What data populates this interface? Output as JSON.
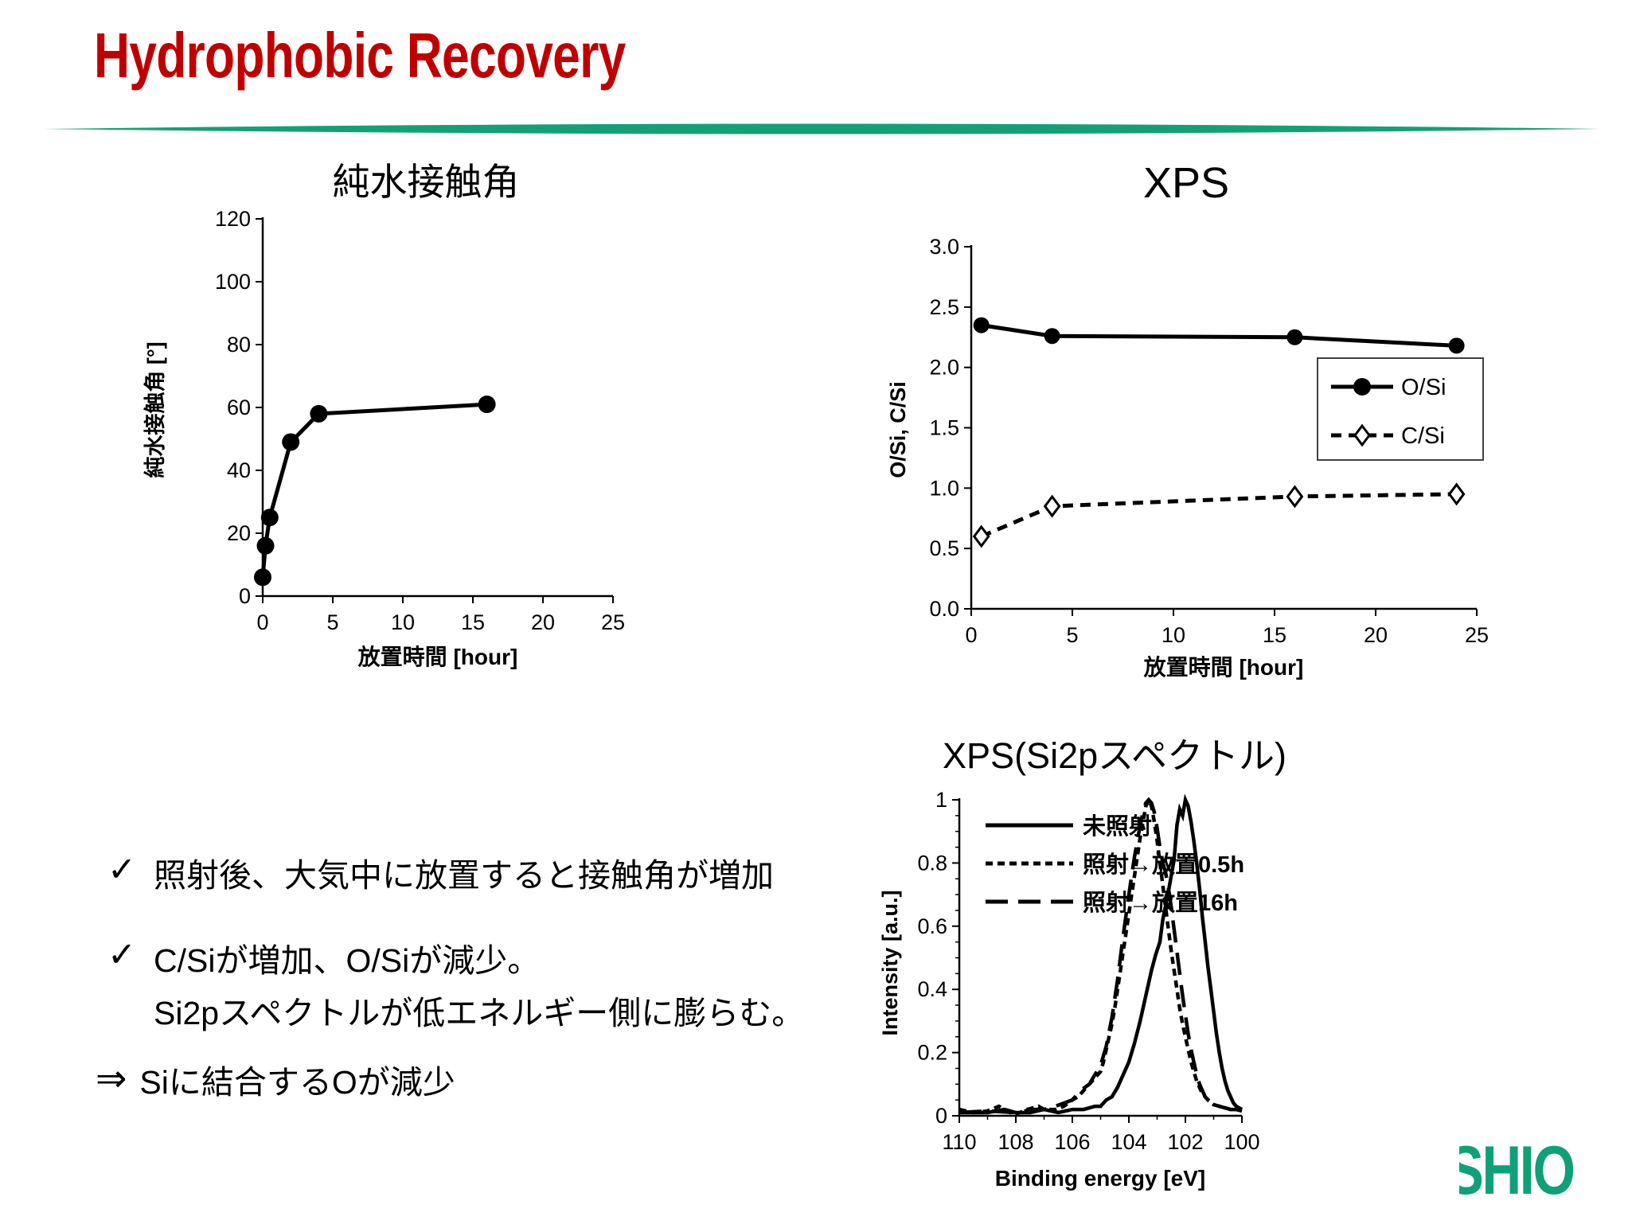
{
  "slide": {
    "title": "Hydrophobic Recovery",
    "title_color": "#C00000",
    "divider_color": "#14A076",
    "logo_text": "SHIO",
    "logo_color": "#0FA077"
  },
  "bullets": {
    "check_glyph": "✓",
    "arrow_glyph": "⇒",
    "item1": "照射後、大気中に放置すると接触角が増加",
    "item2_line1": "C/Siが増加、O/Siが減少。",
    "item2_line2": "Si2pスペクトルが低エネルギー側に膨らむ。",
    "conclusion": "Siに結合するOが減少"
  },
  "chart_data": [
    {
      "id": "contact-angle",
      "type": "line",
      "title": "純水接触角",
      "xlabel": "放置時間 [hour]",
      "ylabel": "純水接触角 [°]",
      "xlim": [
        0,
        25
      ],
      "ylim": [
        0,
        120
      ],
      "xticks": [
        0,
        5,
        10,
        15,
        20,
        25
      ],
      "xtick_labels": [
        "0",
        "5",
        "10",
        "15",
        "20",
        "25"
      ],
      "yticks": [
        0,
        20,
        40,
        60,
        80,
        100,
        120
      ],
      "ytick_labels": [
        "0",
        "20",
        "40",
        "60",
        "80",
        "100",
        "120"
      ],
      "grid": false,
      "legend": "none",
      "series": [
        {
          "name": "純水接触角",
          "line": "solid",
          "marker": "circle",
          "points": [
            [
              0,
              6
            ],
            [
              0.2,
              16
            ],
            [
              0.5,
              25
            ],
            [
              2,
              49
            ],
            [
              4,
              58
            ],
            [
              16,
              61
            ]
          ]
        }
      ]
    },
    {
      "id": "xps-ratio",
      "type": "line",
      "title": "XPS",
      "xlabel": "放置時間 [hour]",
      "ylabel": "O/Si,  C/Si",
      "xlim": [
        0,
        25
      ],
      "ylim": [
        0,
        3
      ],
      "xticks": [
        0,
        5,
        10,
        15,
        20,
        25
      ],
      "xtick_labels": [
        "0",
        "5",
        "10",
        "15",
        "20",
        "25"
      ],
      "yticks": [
        0,
        0.5,
        1,
        1.5,
        2,
        2.5,
        3
      ],
      "ytick_labels": [
        "0.0",
        "0.5",
        "1.0",
        "1.5",
        "2.0",
        "2.5",
        "3.0"
      ],
      "grid": false,
      "legend": "boxed-right",
      "series": [
        {
          "name": "O/Si",
          "line": "solid",
          "marker": "circle",
          "points": [
            [
              0.5,
              2.35
            ],
            [
              4,
              2.26
            ],
            [
              16,
              2.25
            ],
            [
              24,
              2.18
            ]
          ]
        },
        {
          "name": "C/Si",
          "line": "dashed",
          "marker": "diamond-open",
          "points": [
            [
              0.5,
              0.6
            ],
            [
              4,
              0.85
            ],
            [
              16,
              0.93
            ],
            [
              24,
              0.95
            ]
          ]
        }
      ]
    },
    {
      "id": "si2p-spectrum",
      "type": "line",
      "title": "XPS(Si2pスペクトル)",
      "xlabel": "Binding energy [eV]",
      "ylabel": "Intensity [a.u.]",
      "xlim": [
        110,
        100
      ],
      "ylim": [
        0,
        1
      ],
      "xticks": [
        110,
        108,
        106,
        104,
        102,
        100
      ],
      "xtick_labels": [
        "110",
        "108",
        "106",
        "104",
        "102",
        "100"
      ],
      "xminor_step": 1,
      "yticks": [
        0,
        0.2,
        0.4,
        0.6,
        0.8,
        1
      ],
      "ytick_labels": [
        "0",
        "0.2",
        "0.4",
        "0.6",
        "0.8",
        "1"
      ],
      "yminor_step": 0.05,
      "grid": false,
      "legend": "inline-topleft",
      "series": [
        {
          "name": "未照射",
          "line": "solid",
          "marker": "none",
          "points": [
            [
              110,
              0.01
            ],
            [
              109,
              0.01
            ],
            [
              108.4,
              0.02
            ],
            [
              108,
              0.01
            ],
            [
              107.5,
              0.01
            ],
            [
              107,
              0.02
            ],
            [
              106.5,
              0.01
            ],
            [
              106,
              0.02
            ],
            [
              105.6,
              0.02
            ],
            [
              105.2,
              0.03
            ],
            [
              105,
              0.03
            ],
            [
              104.8,
              0.05
            ],
            [
              104.6,
              0.06
            ],
            [
              104.4,
              0.09
            ],
            [
              104.2,
              0.13
            ],
            [
              104,
              0.17
            ],
            [
              103.8,
              0.23
            ],
            [
              103.6,
              0.3
            ],
            [
              103.4,
              0.38
            ],
            [
              103.2,
              0.46
            ],
            [
              103.05,
              0.51
            ],
            [
              102.9,
              0.55
            ],
            [
              102.8,
              0.62
            ],
            [
              102.6,
              0.71
            ],
            [
              102.4,
              0.81
            ],
            [
              102.3,
              0.92
            ],
            [
              102.2,
              0.97
            ],
            [
              102.1,
              0.95
            ],
            [
              102,
              1.0
            ],
            [
              101.9,
              0.98
            ],
            [
              101.8,
              0.93
            ],
            [
              101.7,
              0.87
            ],
            [
              101.6,
              0.8
            ],
            [
              101.5,
              0.72
            ],
            [
              101.4,
              0.63
            ],
            [
              101.3,
              0.55
            ],
            [
              101.2,
              0.47
            ],
            [
              101.1,
              0.4
            ],
            [
              101,
              0.33
            ],
            [
              100.9,
              0.26
            ],
            [
              100.8,
              0.2
            ],
            [
              100.7,
              0.15
            ],
            [
              100.6,
              0.11
            ],
            [
              100.5,
              0.08
            ],
            [
              100.4,
              0.06
            ],
            [
              100.3,
              0.04
            ],
            [
              100.2,
              0.03
            ],
            [
              100.1,
              0.025
            ],
            [
              100,
              0.02
            ]
          ]
        },
        {
          "name": "照射→放置0.5h",
          "line": "short-dash",
          "marker": "none",
          "points": [
            [
              110,
              0.02
            ],
            [
              109.5,
              0.01
            ],
            [
              109,
              0.015
            ],
            [
              108.6,
              0.03
            ],
            [
              108.2,
              0.01
            ],
            [
              108,
              0.005
            ],
            [
              107.6,
              0.02
            ],
            [
              107.2,
              0.03
            ],
            [
              107,
              0.02
            ],
            [
              106.6,
              0.02
            ],
            [
              106.3,
              0.03
            ],
            [
              106,
              0.05
            ],
            [
              105.8,
              0.06
            ],
            [
              105.6,
              0.08
            ],
            [
              105.4,
              0.1
            ],
            [
              105.2,
              0.12
            ],
            [
              105,
              0.14
            ],
            [
              104.9,
              0.17
            ],
            [
              104.8,
              0.21
            ],
            [
              104.7,
              0.25
            ],
            [
              104.6,
              0.29
            ],
            [
              104.5,
              0.34
            ],
            [
              104.4,
              0.4
            ],
            [
              104.3,
              0.46
            ],
            [
              104.2,
              0.52
            ],
            [
              104.1,
              0.58
            ],
            [
              104,
              0.64
            ],
            [
              103.9,
              0.7
            ],
            [
              103.8,
              0.76
            ],
            [
              103.7,
              0.82
            ],
            [
              103.6,
              0.88
            ],
            [
              103.5,
              0.93
            ],
            [
              103.4,
              0.98
            ],
            [
              103.3,
              1.0
            ],
            [
              103.2,
              0.98
            ],
            [
              103.1,
              0.93
            ],
            [
              103,
              0.87
            ],
            [
              102.9,
              0.8
            ],
            [
              102.8,
              0.73
            ],
            [
              102.7,
              0.66
            ],
            [
              102.6,
              0.59
            ],
            [
              102.5,
              0.52
            ],
            [
              102.4,
              0.46
            ],
            [
              102.3,
              0.4
            ],
            [
              102.2,
              0.34
            ],
            [
              102.1,
              0.29
            ],
            [
              102,
              0.25
            ],
            [
              101.9,
              0.21
            ],
            [
              101.8,
              0.17
            ],
            [
              101.7,
              0.14
            ],
            [
              101.6,
              0.11
            ],
            [
              101.5,
              0.09
            ],
            [
              101.4,
              0.07
            ],
            [
              101.2,
              0.05
            ],
            [
              101,
              0.035
            ],
            [
              100.8,
              0.03
            ],
            [
              100.6,
              0.025
            ],
            [
              100.4,
              0.02
            ],
            [
              100.2,
              0.02
            ],
            [
              100,
              0.015
            ]
          ]
        },
        {
          "name": "照射→放置16h",
          "line": "long-dash",
          "marker": "none",
          "points": [
            [
              110,
              0.01
            ],
            [
              109,
              0.015
            ],
            [
              108,
              0.01
            ],
            [
              107.4,
              0.02
            ],
            [
              107,
              0.02
            ],
            [
              106.6,
              0.03
            ],
            [
              106.3,
              0.04
            ],
            [
              106,
              0.05
            ],
            [
              105.7,
              0.08
            ],
            [
              105.4,
              0.1
            ],
            [
              105.2,
              0.13
            ],
            [
              105,
              0.16
            ],
            [
              104.8,
              0.22
            ],
            [
              104.6,
              0.31
            ],
            [
              104.4,
              0.43
            ],
            [
              104.2,
              0.57
            ],
            [
              104,
              0.7
            ],
            [
              103.8,
              0.82
            ],
            [
              103.6,
              0.92
            ],
            [
              103.5,
              0.96
            ],
            [
              103.4,
              0.99
            ],
            [
              103.3,
              1.0
            ],
            [
              103.2,
              0.99
            ],
            [
              103.1,
              0.96
            ],
            [
              103,
              0.91
            ],
            [
              102.9,
              0.85
            ],
            [
              102.8,
              0.8
            ],
            [
              102.7,
              0.77
            ],
            [
              102.6,
              0.72
            ],
            [
              102.5,
              0.66
            ],
            [
              102.4,
              0.59
            ],
            [
              102.3,
              0.52
            ],
            [
              102.2,
              0.45
            ],
            [
              102.1,
              0.38
            ],
            [
              102,
              0.32
            ],
            [
              101.9,
              0.26
            ],
            [
              101.8,
              0.21
            ],
            [
              101.7,
              0.17
            ],
            [
              101.6,
              0.13
            ],
            [
              101.5,
              0.1
            ],
            [
              101.4,
              0.08
            ],
            [
              101.3,
              0.06
            ],
            [
              101.2,
              0.05
            ],
            [
              101,
              0.04
            ],
            [
              100.8,
              0.03
            ],
            [
              100.6,
              0.025
            ],
            [
              100.4,
              0.02
            ],
            [
              100.2,
              0.02
            ],
            [
              100,
              0.015
            ]
          ]
        }
      ]
    }
  ]
}
